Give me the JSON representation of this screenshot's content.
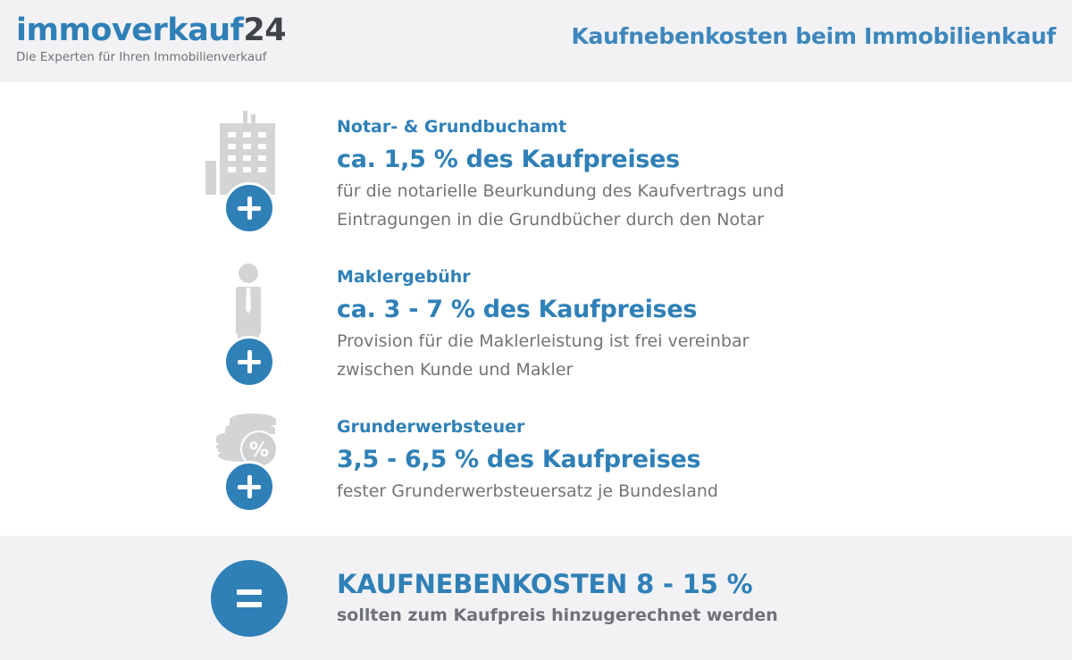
{
  "header": {
    "brand_main": "immoverkauf",
    "brand_suffix": "24",
    "tagline": "Die Experten für Ihren Immobilienverkauf",
    "title": "Kaufnebenkosten beim Immobilienkauf"
  },
  "items": [
    {
      "icon": "building-icon",
      "title": "Notar- & Grundbuchamt",
      "amount": "ca. 1,5 % des Kaufpreises",
      "desc_lines": [
        "für die notarielle Beurkundung des Kaufvertrags und",
        "Eintragungen in die Grundbücher durch den Notar"
      ]
    },
    {
      "icon": "person-icon",
      "title": "Maklergebühr",
      "amount": "ca. 3 - 7 % des Kaufpreises",
      "desc_lines": [
        "Provision für die Maklerleistung ist frei vereinbar",
        "zwischen Kunde und Makler"
      ]
    },
    {
      "icon": "coins-percent-icon",
      "icon_symbol": "%",
      "title": "Grunderwerbsteuer",
      "amount": "3,5 - 6,5 % des Kaufpreises",
      "desc_lines": [
        "fester Grunderwerbsteuersatz je Bundesland"
      ]
    }
  ],
  "footer": {
    "icon": "equals-icon",
    "title": "KAUFNEBENKOSTEN 8 - 15 %",
    "subtitle": "sollten zum Kaufpreis hinzugerechnet werden"
  },
  "colors": {
    "accent": "#2f80b7",
    "text_gray": "#727477",
    "icon_gray": "#d3d4d6",
    "band_bg": "#f2f2f4"
  }
}
